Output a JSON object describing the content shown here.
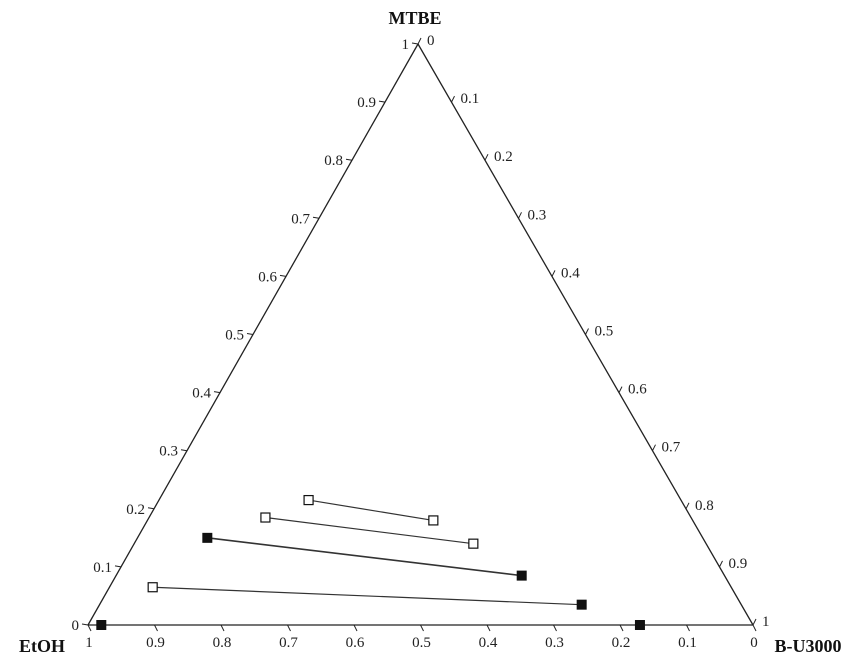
{
  "chart_data": {
    "type": "ternary",
    "vertices": {
      "top": "MTBE",
      "left": "EtOH",
      "right": "B-U3000"
    },
    "axis_ticks": {
      "left_edge": [
        "0",
        "0.1",
        "0.2",
        "0.3",
        "0.4",
        "0.5",
        "0.6",
        "0.7",
        "0.8",
        "0.9",
        "1"
      ],
      "right_edge": [
        "0",
        "0.1",
        "0.2",
        "0.3",
        "0.4",
        "0.5",
        "0.6",
        "0.7",
        "0.8",
        "0.9",
        "1"
      ],
      "bottom_edge": [
        "1",
        "0.9",
        "0.8",
        "0.7",
        "0.6",
        "0.5",
        "0.4",
        "0.3",
        "0.2",
        "0.1",
        "0"
      ]
    },
    "binodal_points": [
      {
        "MTBE": 0.0,
        "B-U3000": 0.02
      },
      {
        "MTBE": 0.0,
        "B-U3000": 0.83
      }
    ],
    "tie_lines": [
      {
        "start": {
          "MTBE": 0.065,
          "B-U3000": 0.065
        },
        "end": {
          "MTBE": 0.035,
          "B-U3000": 0.725
        },
        "start_filled": false,
        "end_filled": true
      },
      {
        "start": {
          "MTBE": 0.15,
          "B-U3000": 0.105
        },
        "end": {
          "MTBE": 0.085,
          "B-U3000": 0.61
        },
        "start_filled": true,
        "end_filled": true
      },
      {
        "start": {
          "MTBE": 0.185,
          "B-U3000": 0.175
        },
        "end": {
          "MTBE": 0.14,
          "B-U3000": 0.51
        },
        "start_filled": false,
        "end_filled": false
      },
      {
        "start": {
          "MTBE": 0.215,
          "B-U3000": 0.225
        },
        "end": {
          "MTBE": 0.18,
          "B-U3000": 0.43
        },
        "start_filled": false,
        "end_filled": false
      }
    ],
    "grid": false,
    "legend": "none"
  }
}
